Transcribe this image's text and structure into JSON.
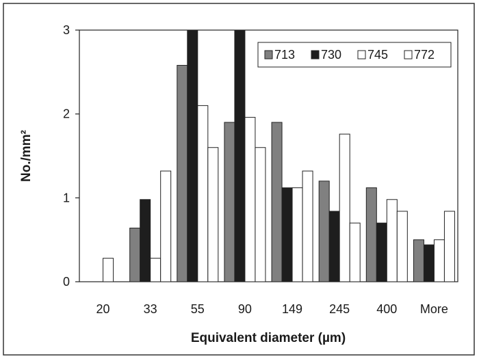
{
  "chart_data": {
    "type": "bar",
    "xlabel": "Equivalent diameter (µm)",
    "ylabel": "No./mm²",
    "ylim": [
      0,
      3
    ],
    "yticks": [
      "0",
      "1",
      "2",
      "3"
    ],
    "categories": [
      "20",
      "33",
      "55",
      "90",
      "149",
      "245",
      "400",
      "More"
    ],
    "series": [
      {
        "name": "713",
        "color": "#808080",
        "values": [
          0,
          0.64,
          2.58,
          1.9,
          1.9,
          1.2,
          1.12,
          0.5
        ]
      },
      {
        "name": "730",
        "color": "#1e1e1e",
        "values": [
          0,
          0.98,
          3.0,
          3.0,
          1.12,
          0.84,
          0.7,
          0.44
        ]
      },
      {
        "name": "745",
        "color": "#ffffff",
        "values": [
          0.28,
          0.28,
          2.1,
          1.96,
          1.12,
          1.76,
          0.98,
          0.5
        ]
      },
      {
        "name": "772",
        "color": "#ffffff",
        "values": [
          0,
          1.32,
          1.6,
          1.6,
          1.32,
          0.7,
          0.84,
          0.84
        ]
      }
    ],
    "grid": false,
    "legend_position": "top-right"
  }
}
